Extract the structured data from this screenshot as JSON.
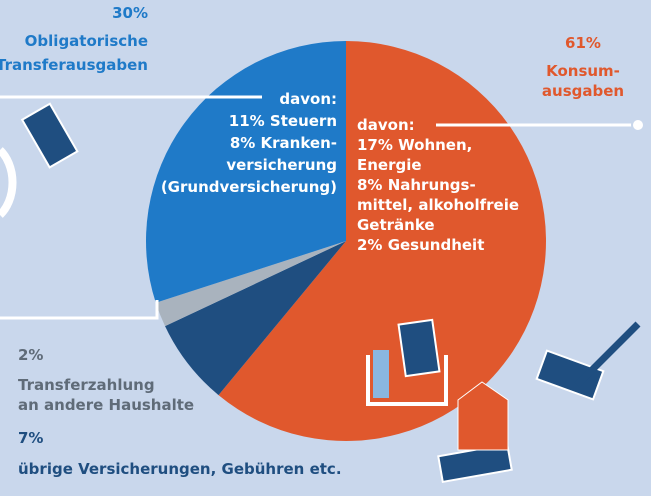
{
  "chart_data": {
    "type": "pie",
    "values": [
      61,
      7,
      2,
      30
    ],
    "value_labels": [
      "61%",
      "7%",
      "2%",
      "30%"
    ],
    "colors": [
      "#e0582d",
      "#1f4e80",
      "#a9b3be",
      "#1f7ac8"
    ],
    "labels": [
      [
        "Konsum-",
        "ausgaben"
      ],
      [
        "übrige Versicherungen, Gebühren etc."
      ],
      [
        "Transferzahlung",
        "an andere Haushalte"
      ],
      [
        "Obligatorische",
        "Transferausgaben"
      ]
    ],
    "annotations": [
      [
        "davon:",
        "17% Wohnen,",
        "Energie",
        "8% Nahrungs-",
        "mittel, alkoholfreie",
        "Getränke",
        "2% Gesundheit"
      ],
      [
        "davon:",
        "11% Steuern",
        "8% Kranken-",
        "versicherung",
        "(Grundversicherung)"
      ]
    ]
  }
}
